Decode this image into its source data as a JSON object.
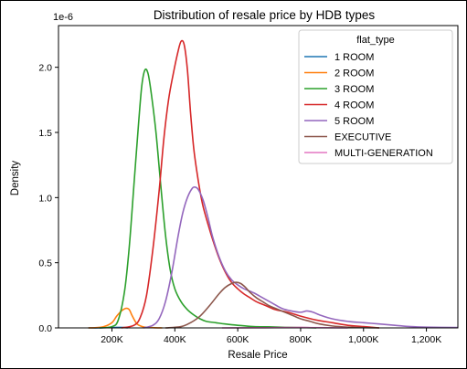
{
  "chart_data": {
    "type": "line",
    "chart_kind": "kde-density",
    "title": "Distribution of resale price by HDB types",
    "xlabel": "Resale Price",
    "ylabel": "Density",
    "y_scale_label": "1e-6",
    "x_ticks": [
      {
        "value": 200000,
        "label": "200K"
      },
      {
        "value": 400000,
        "label": "400K"
      },
      {
        "value": 600000,
        "label": "600K"
      },
      {
        "value": 800000,
        "label": "800K"
      },
      {
        "value": 1000000,
        "label": "1,000K"
      },
      {
        "value": 1200000,
        "label": "1,200K"
      }
    ],
    "y_ticks": [
      {
        "value": 0.0,
        "label": "0.0"
      },
      {
        "value": 0.5,
        "label": "0.5"
      },
      {
        "value": 1.0,
        "label": "1.0"
      },
      {
        "value": 1.5,
        "label": "1.5"
      },
      {
        "value": 2.0,
        "label": "2.0"
      }
    ],
    "xlim": [
      30000,
      1300000
    ],
    "ylim": [
      0,
      2.32
    ],
    "grid": false,
    "legend": {
      "title": "flat_type",
      "placement": "upper right",
      "entries": [
        "1 ROOM",
        "2 ROOM",
        "3 ROOM",
        "4 ROOM",
        "5 ROOM",
        "EXECUTIVE",
        "MULTI-GENERATION"
      ]
    },
    "series": [
      {
        "name": "1 ROOM",
        "color": "#1f77b4",
        "x": [
          125000,
          160000,
          200000,
          230000,
          250000
        ],
        "y": [
          0.0,
          0.0,
          0.003,
          0.004,
          0.0
        ]
      },
      {
        "name": "2 ROOM",
        "color": "#ff7f0e",
        "x": [
          125000,
          150000,
          175000,
          200000,
          215000,
          230000,
          245000,
          255000,
          265000,
          280000,
          300000,
          330000,
          360000
        ],
        "y": [
          0.0,
          0.002,
          0.01,
          0.04,
          0.09,
          0.13,
          0.15,
          0.14,
          0.09,
          0.03,
          0.008,
          0.002,
          0.0
        ]
      },
      {
        "name": "3 ROOM",
        "color": "#2ca02c",
        "x": [
          160000,
          200000,
          220000,
          240000,
          255000,
          270000,
          285000,
          295000,
          305000,
          315000,
          325000,
          340000,
          355000,
          370000,
          385000,
          400000,
          420000,
          440000,
          460000,
          480000,
          500000,
          530000,
          560000,
          600000,
          650000,
          700000,
          750000,
          800000,
          850000
        ],
        "y": [
          0.0,
          0.01,
          0.06,
          0.28,
          0.62,
          1.1,
          1.58,
          1.86,
          1.98,
          1.95,
          1.8,
          1.5,
          1.1,
          0.72,
          0.45,
          0.3,
          0.2,
          0.14,
          0.1,
          0.07,
          0.05,
          0.04,
          0.03,
          0.02,
          0.01,
          0.008,
          0.005,
          0.003,
          0.0
        ]
      },
      {
        "name": "4 ROOM",
        "color": "#d62728",
        "x": [
          230000,
          270000,
          290000,
          310000,
          330000,
          350000,
          365000,
          380000,
          395000,
          410000,
          420000,
          430000,
          440000,
          450000,
          460000,
          470000,
          480000,
          490000,
          505000,
          520000,
          540000,
          560000,
          580000,
          600000,
          620000,
          640000,
          660000,
          690000,
          720000,
          760000,
          800000,
          850000,
          900000,
          950000,
          1000000,
          1050000
        ],
        "y": [
          0.0,
          0.02,
          0.08,
          0.25,
          0.6,
          1.05,
          1.45,
          1.75,
          1.95,
          2.12,
          2.2,
          2.17,
          1.98,
          1.65,
          1.38,
          1.2,
          1.05,
          0.93,
          0.8,
          0.68,
          0.54,
          0.43,
          0.35,
          0.3,
          0.26,
          0.23,
          0.2,
          0.17,
          0.14,
          0.12,
          0.09,
          0.06,
          0.04,
          0.02,
          0.01,
          0.0
        ]
      },
      {
        "name": "5 ROOM",
        "color": "#9467bd",
        "x": [
          300000,
          330000,
          350000,
          370000,
          390000,
          410000,
          425000,
          440000,
          455000,
          465000,
          475000,
          490000,
          505000,
          520000,
          540000,
          560000,
          580000,
          600000,
          620000,
          650000,
          680000,
          710000,
          740000,
          770000,
          800000,
          820000,
          840000,
          860000,
          900000,
          950000,
          1000000,
          1050000,
          1100000,
          1150000,
          1200000,
          1300000
        ],
        "y": [
          0.0,
          0.02,
          0.07,
          0.2,
          0.42,
          0.7,
          0.88,
          1.0,
          1.07,
          1.08,
          1.06,
          0.98,
          0.85,
          0.7,
          0.55,
          0.44,
          0.37,
          0.33,
          0.3,
          0.27,
          0.23,
          0.19,
          0.15,
          0.13,
          0.12,
          0.13,
          0.12,
          0.1,
          0.07,
          0.05,
          0.04,
          0.03,
          0.02,
          0.01,
          0.006,
          0.003
        ]
      },
      {
        "name": "EXECUTIVE",
        "color": "#8c564b",
        "x": [
          370000,
          420000,
          450000,
          480000,
          510000,
          540000,
          560000,
          580000,
          595000,
          610000,
          625000,
          640000,
          660000,
          680000,
          700000,
          720000,
          740000,
          760000,
          780000,
          800000,
          830000,
          860000,
          900000,
          950000,
          1000000,
          1050000
        ],
        "y": [
          0.0,
          0.01,
          0.04,
          0.09,
          0.17,
          0.26,
          0.31,
          0.34,
          0.35,
          0.34,
          0.31,
          0.27,
          0.23,
          0.2,
          0.17,
          0.15,
          0.13,
          0.11,
          0.09,
          0.07,
          0.05,
          0.03,
          0.015,
          0.006,
          0.002,
          0.0
        ]
      },
      {
        "name": "MULTI-GENERATION",
        "color": "#e377c2",
        "x": [
          550000,
          650000,
          750000,
          800000,
          850000,
          950000
        ],
        "y": [
          0.0,
          0.001,
          0.003,
          0.004,
          0.002,
          0.0
        ]
      }
    ]
  }
}
